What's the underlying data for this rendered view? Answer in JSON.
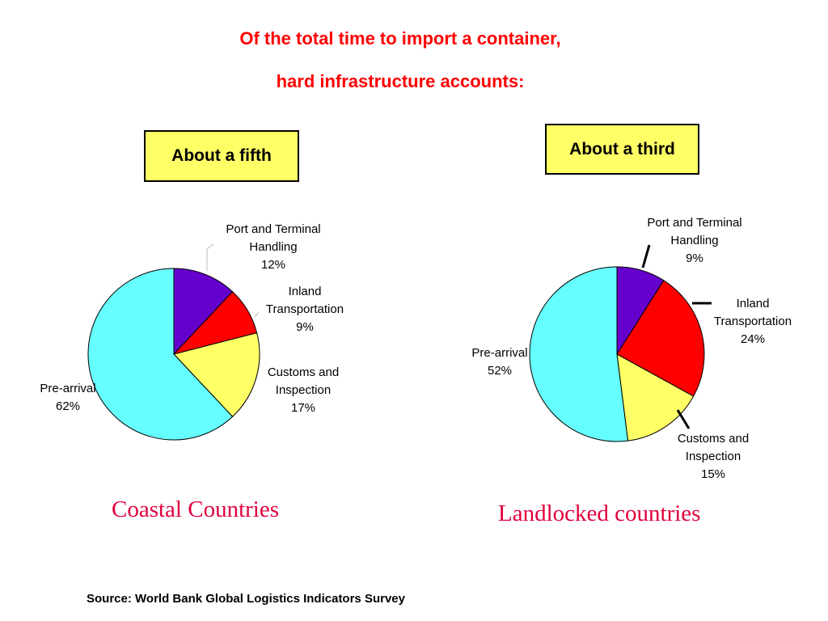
{
  "title_line1": "Of the total time to import a container,",
  "title_line2": "hard infrastructure accounts:",
  "boxes": {
    "left": "About a fifth",
    "right": "About a third"
  },
  "source": "Source: World Bank Global Logistics Indicators Survey",
  "colors": {
    "title": "#ff0000",
    "caption": "#e0003c",
    "box_fill": "#ffff66",
    "pre_arrival": "#66ffff",
    "port": "#6600cc",
    "inland": "#ff0000",
    "customs": "#ffff66"
  },
  "chart_data": [
    {
      "type": "pie",
      "title": "Coastal Countries",
      "slices": [
        {
          "label": [
            "Port and Terminal",
            "Handling",
            "12%"
          ],
          "value": 12,
          "color": "#6600cc"
        },
        {
          "label": [
            "Inland",
            "Transportation",
            "9%"
          ],
          "value": 9,
          "color": "#ff0000"
        },
        {
          "label": [
            "Customs and",
            "Inspection",
            "17%"
          ],
          "value": 17,
          "color": "#ffff66"
        },
        {
          "label": [
            "Pre-arrival",
            "62%"
          ],
          "value": 62,
          "color": "#66ffff"
        }
      ]
    },
    {
      "type": "pie",
      "title": "Landlocked countries",
      "slices": [
        {
          "label": [
            "Port and Terminal",
            "Handling",
            "9%"
          ],
          "value": 9,
          "color": "#6600cc"
        },
        {
          "label": [
            "Inland",
            "Transportation",
            "24%"
          ],
          "value": 24,
          "color": "#ff0000"
        },
        {
          "label": [
            "Customs and",
            "Inspection",
            "15%"
          ],
          "value": 15,
          "color": "#ffff66"
        },
        {
          "label": [
            "Pre-arrival",
            "52%"
          ],
          "value": 52,
          "color": "#66ffff"
        }
      ]
    }
  ]
}
